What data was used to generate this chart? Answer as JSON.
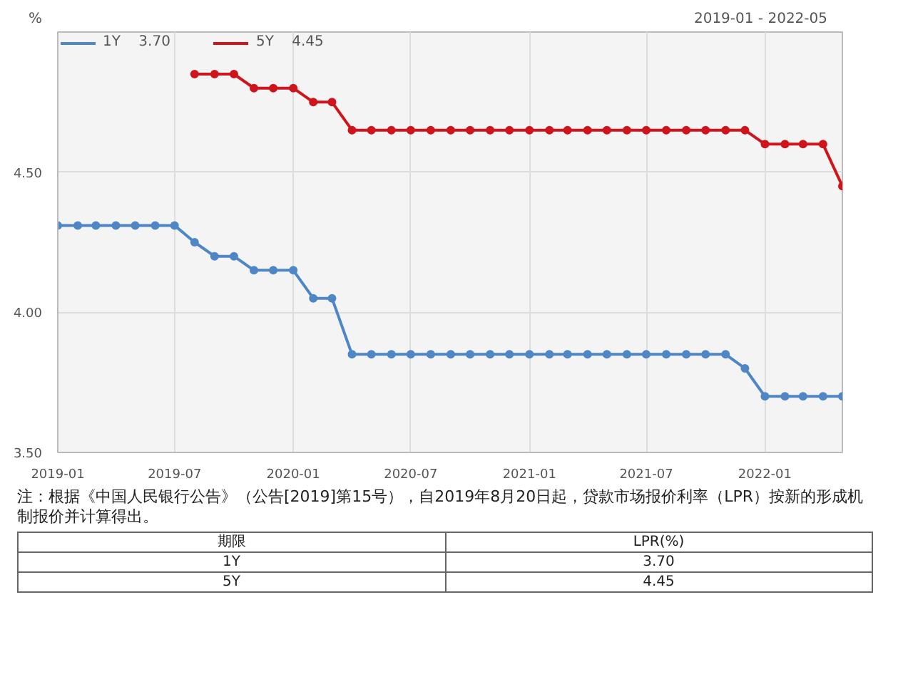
{
  "chart_data": {
    "type": "line",
    "ylabel": "%",
    "x": [
      "2019-01",
      "2019-02",
      "2019-03",
      "2019-04",
      "2019-05",
      "2019-06",
      "2019-07",
      "2019-08",
      "2019-09",
      "2019-10",
      "2019-11",
      "2019-12",
      "2020-01",
      "2020-02",
      "2020-03",
      "2020-04",
      "2020-05",
      "2020-06",
      "2020-07",
      "2020-08",
      "2020-09",
      "2020-10",
      "2020-11",
      "2020-12",
      "2021-01",
      "2021-02",
      "2021-03",
      "2021-04",
      "2021-05",
      "2021-06",
      "2021-07",
      "2021-08",
      "2021-09",
      "2021-10",
      "2021-11",
      "2021-12",
      "2022-01",
      "2022-02",
      "2022-03",
      "2022-04",
      "2022-05"
    ],
    "series": [
      {
        "name": "1Y    3.70",
        "color": "#4f86c6",
        "values": [
          4.31,
          4.31,
          4.31,
          4.31,
          4.31,
          4.31,
          4.31,
          4.25,
          4.2,
          4.2,
          4.15,
          4.15,
          4.15,
          4.05,
          4.05,
          3.85,
          3.85,
          3.85,
          3.85,
          3.85,
          3.85,
          3.85,
          3.85,
          3.85,
          3.85,
          3.85,
          3.85,
          3.85,
          3.85,
          3.85,
          3.85,
          3.85,
          3.85,
          3.85,
          3.85,
          3.8,
          3.7,
          3.7,
          3.7,
          3.7,
          3.7
        ]
      },
      {
        "name": "5Y    4.45",
        "color": "#d0141c",
        "values": [
          null,
          null,
          null,
          null,
          null,
          null,
          null,
          4.85,
          4.85,
          4.85,
          4.8,
          4.8,
          4.8,
          4.75,
          4.75,
          4.65,
          4.65,
          4.65,
          4.65,
          4.65,
          4.65,
          4.65,
          4.65,
          4.65,
          4.65,
          4.65,
          4.65,
          4.65,
          4.65,
          4.65,
          4.65,
          4.65,
          4.65,
          4.65,
          4.65,
          4.65,
          4.6,
          4.6,
          4.6,
          4.6,
          4.45
        ]
      }
    ],
    "xlim": [
      "2019-01",
      "2022-05"
    ],
    "xticks": [
      {
        "value": "2019-01",
        "label": "2019-01"
      },
      {
        "value": "2019-07",
        "label": "2019-07"
      },
      {
        "value": "2020-01",
        "label": "2020-01"
      },
      {
        "value": "2020-07",
        "label": "2020-07"
      },
      {
        "value": "2021-01",
        "label": "2021-01"
      },
      {
        "value": "2021-07",
        "label": "2021-07"
      },
      {
        "value": "2022-01",
        "label": "2022-01"
      }
    ],
    "ylim": [
      3.5,
      5.0
    ],
    "yticks": [
      {
        "value": 3.5,
        "label": "3.50"
      },
      {
        "value": 4.0,
        "label": "4.00"
      },
      {
        "value": 4.5,
        "label": "4.50"
      },
      {
        "value": 5.0,
        "label": null
      }
    ],
    "grid": true,
    "legend": "top left",
    "marker": "circle",
    "line_style": "solid",
    "annotations": [
      "2019-01 - 2022-05",
      "注：根据《中国人民银行公告》（公告[2019]第15号），自2019年8月20日起，贷款市场报价利率（LPR）按新的形成机制报价并计算得出。",
      "期限",
      "LPR(%)",
      "1Y",
      "3.70",
      "5Y",
      "4.45"
    ]
  }
}
